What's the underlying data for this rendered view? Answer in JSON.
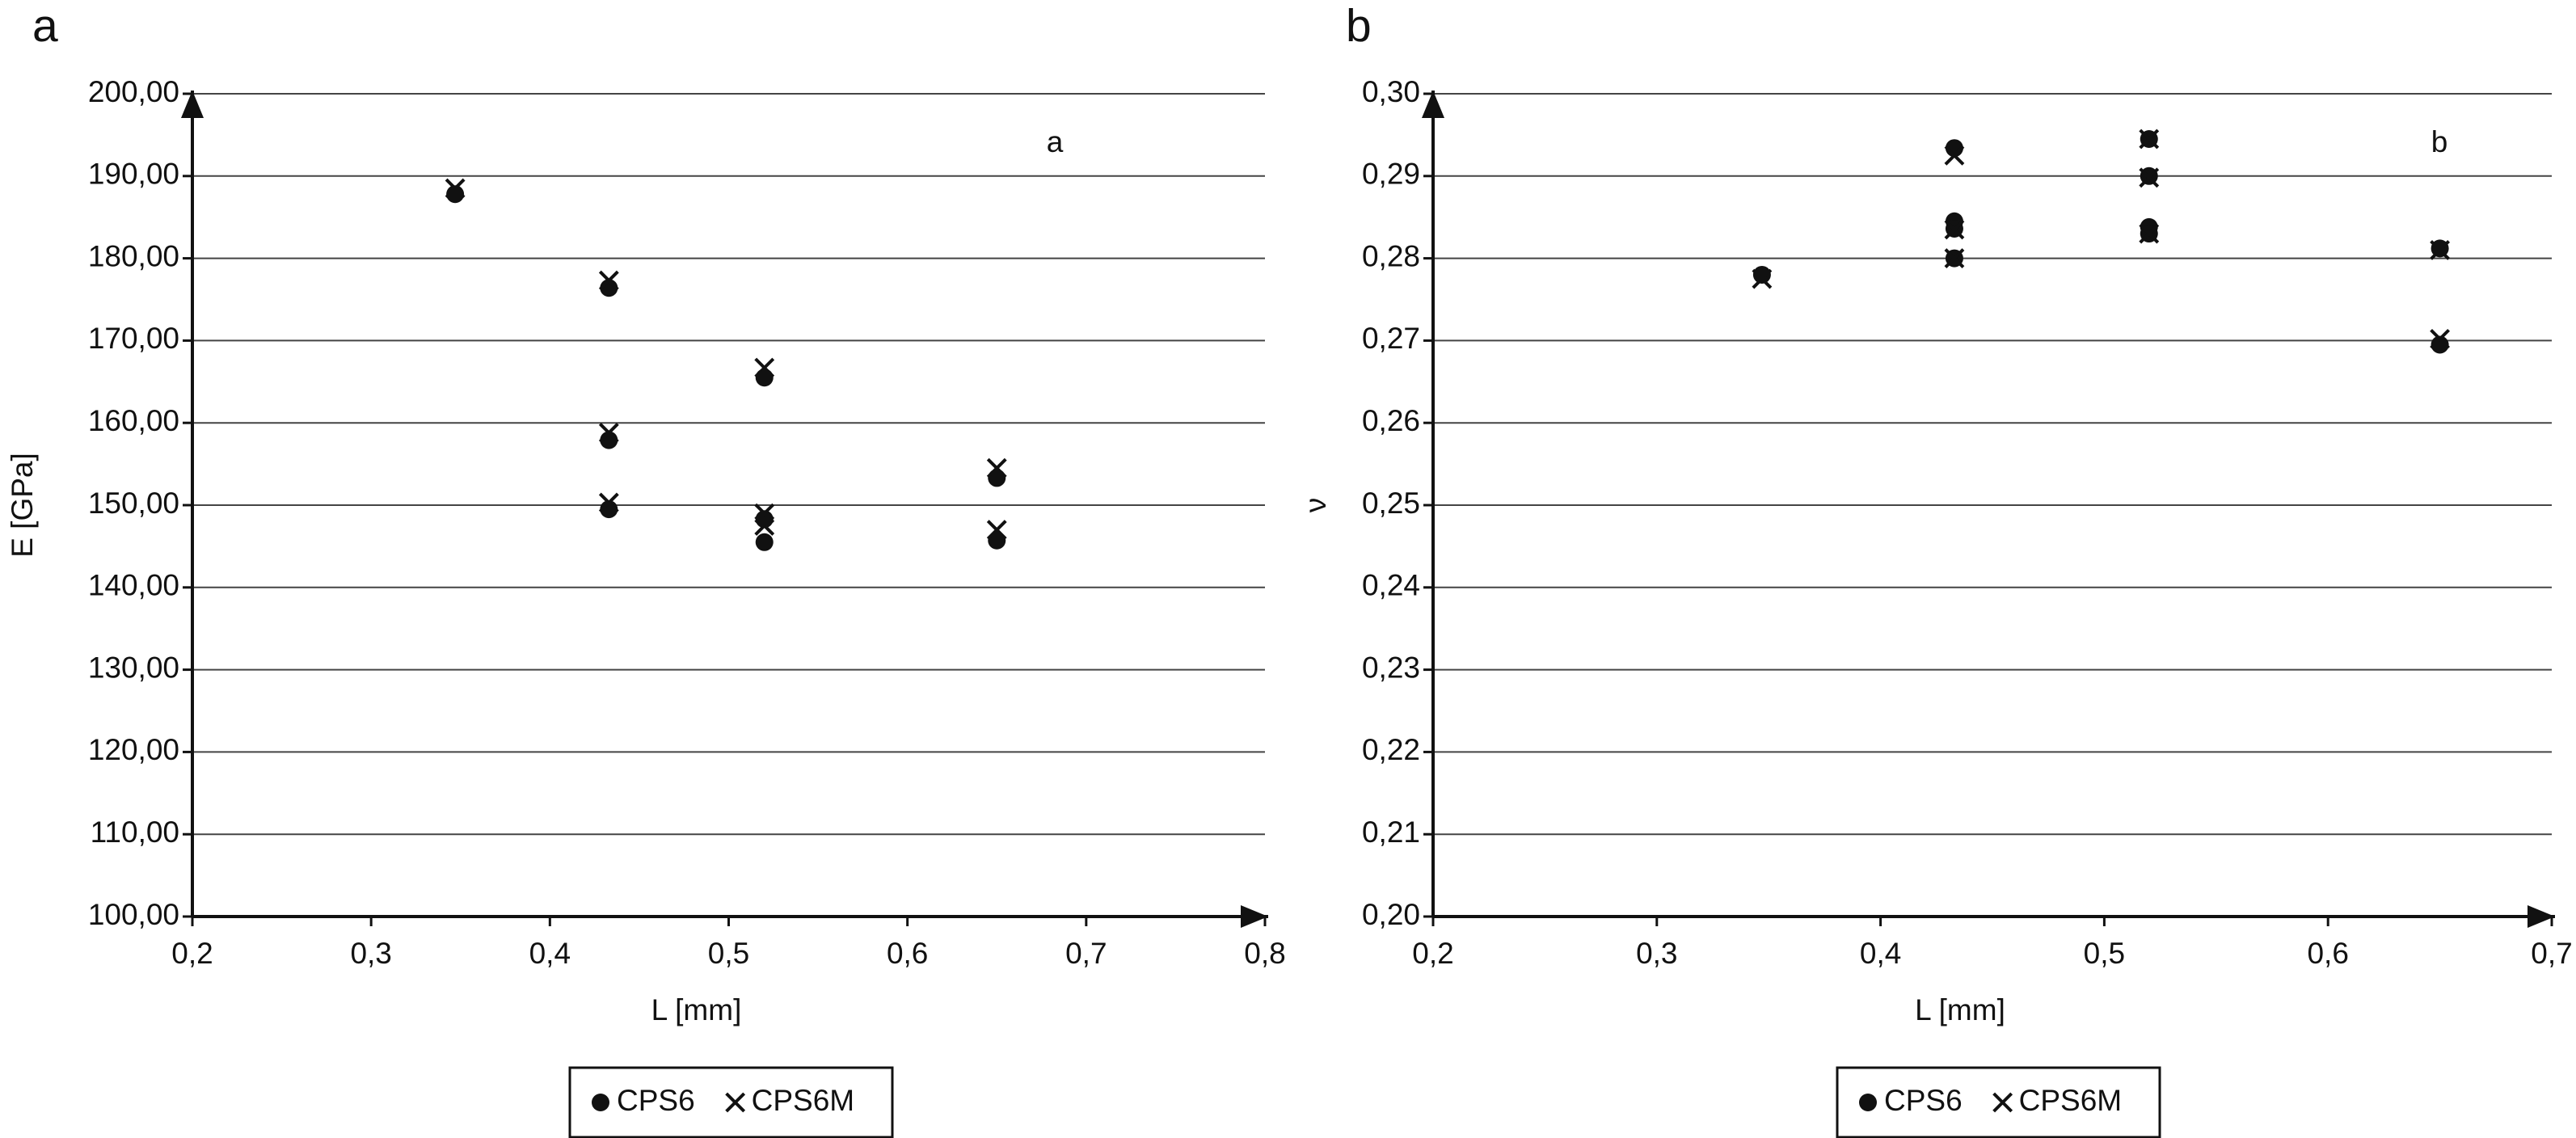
{
  "chart_data": [
    {
      "type": "scatter",
      "panel_label": "a",
      "annotation": "a",
      "x_label": "L [mm]",
      "y_label": "E [GPa]",
      "xlim": [
        0.2,
        0.8
      ],
      "ylim": [
        100,
        200
      ],
      "grid": true,
      "legend": "bottom",
      "xticks": [
        {
          "value": 0.2,
          "label": "0,2"
        },
        {
          "value": 0.3,
          "label": "0,3"
        },
        {
          "value": 0.4,
          "label": "0,4"
        },
        {
          "value": 0.5,
          "label": "0,5"
        },
        {
          "value": 0.6,
          "label": "0,6"
        },
        {
          "value": 0.7,
          "label": "0,7"
        },
        {
          "value": 0.8,
          "label": "0,8"
        }
      ],
      "yticks": [
        {
          "value": 100,
          "label": "100,00"
        },
        {
          "value": 110,
          "label": "110,00"
        },
        {
          "value": 120,
          "label": "120,00"
        },
        {
          "value": 130,
          "label": "130,00"
        },
        {
          "value": 140,
          "label": "140,00"
        },
        {
          "value": 150,
          "label": "150,00"
        },
        {
          "value": 160,
          "label": "160,00"
        },
        {
          "value": 170,
          "label": "170,00"
        },
        {
          "value": 180,
          "label": "180,00"
        },
        {
          "value": 190,
          "label": "190,00"
        },
        {
          "value": 200,
          "label": "200,00"
        }
      ],
      "series": [
        {
          "name": "CPS6",
          "color": "#111111",
          "marker": "circle",
          "x": [
            0.347,
            0.433,
            0.433,
            0.433,
            0.52,
            0.52,
            0.52,
            0.65,
            0.65
          ],
          "values": [
            187.8,
            176.4,
            157.9,
            149.5,
            165.5,
            148.3,
            145.5,
            153.3,
            145.7
          ]
        },
        {
          "name": "CPS6M",
          "color": "#111111",
          "marker": "x",
          "x": [
            0.347,
            0.433,
            0.433,
            0.433,
            0.52,
            0.52,
            0.52,
            0.65,
            0.65
          ],
          "values": [
            188.5,
            177.3,
            158.8,
            150.3,
            166.7,
            149,
            147.5,
            154.5,
            147
          ]
        }
      ]
    },
    {
      "type": "scatter",
      "panel_label": "b",
      "annotation": "b",
      "x_label": "L [mm]",
      "y_label": "ν",
      "xlim": [
        0.2,
        0.7
      ],
      "ylim": [
        0.2,
        0.3
      ],
      "grid": true,
      "legend": "bottom",
      "xticks": [
        {
          "value": 0.2,
          "label": "0,2"
        },
        {
          "value": 0.3,
          "label": "0,3"
        },
        {
          "value": 0.4,
          "label": "0,4"
        },
        {
          "value": 0.5,
          "label": "0,5"
        },
        {
          "value": 0.6,
          "label": "0,6"
        },
        {
          "value": 0.7,
          "label": "0,7"
        }
      ],
      "yticks": [
        {
          "value": 0.2,
          "label": "0,20"
        },
        {
          "value": 0.21,
          "label": "0,21"
        },
        {
          "value": 0.22,
          "label": "0,22"
        },
        {
          "value": 0.23,
          "label": "0,23"
        },
        {
          "value": 0.24,
          "label": "0,24"
        },
        {
          "value": 0.25,
          "label": "0,25"
        },
        {
          "value": 0.26,
          "label": "0,26"
        },
        {
          "value": 0.27,
          "label": "0,27"
        },
        {
          "value": 0.28,
          "label": "0,28"
        },
        {
          "value": 0.29,
          "label": "0,29"
        },
        {
          "value": 0.3,
          "label": "0,30"
        }
      ],
      "series": [
        {
          "name": "CPS6",
          "color": "#111111",
          "marker": "circle",
          "x": [
            0.347,
            0.433,
            0.433,
            0.433,
            0.433,
            0.52,
            0.52,
            0.52,
            0.52,
            0.65,
            0.65
          ],
          "values": [
            0.278,
            0.2934,
            0.2845,
            0.2836,
            0.28,
            0.2945,
            0.29,
            0.2838,
            0.283,
            0.2812,
            0.2695
          ]
        },
        {
          "name": "CPS6M",
          "color": "#111111",
          "marker": "x",
          "x": [
            0.347,
            0.433,
            0.433,
            0.433,
            0.52,
            0.52,
            0.52,
            0.65,
            0.65
          ],
          "values": [
            0.2775,
            0.2925,
            0.2835,
            0.28,
            0.2945,
            0.2898,
            0.283,
            0.281,
            0.2702
          ]
        }
      ]
    }
  ]
}
